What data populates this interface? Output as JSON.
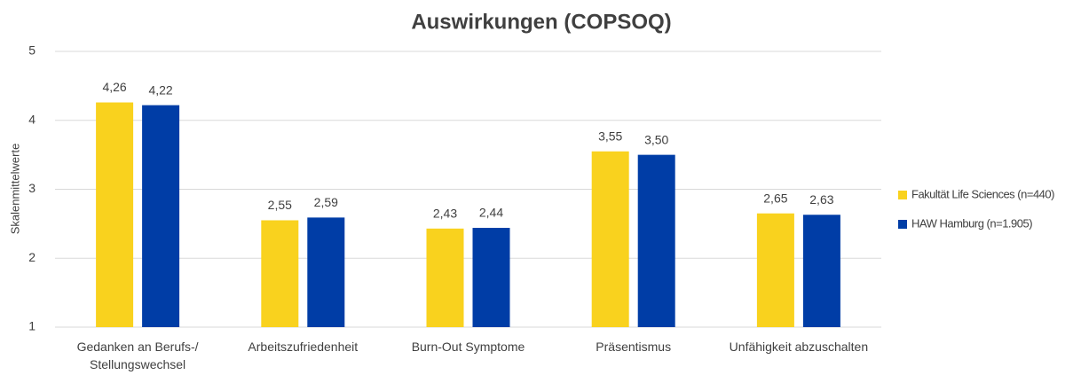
{
  "chart_data": {
    "type": "bar",
    "title": "Auswirkungen (COPSOQ)",
    "y_label": "Skalenmittelwerte",
    "categories": [
      "Gedanken an Berufs-/ Stellungswechsel",
      "Arbeitszufriedenheit",
      "Burn-Out Symptome",
      "Präsentismus",
      "Unfähigkeit abzuschalten"
    ],
    "series": [
      {
        "name": "Fakultät Life Sciences (n=440)",
        "color": "#f9d21e",
        "values": [
          4.26,
          2.55,
          2.43,
          3.55,
          2.65
        ],
        "value_labels": [
          "4,26",
          "2,55",
          "2,43",
          "3,55",
          "2,65"
        ]
      },
      {
        "name": "HAW Hamburg (n=1.905)",
        "color": "#003da6",
        "values": [
          4.22,
          2.59,
          2.44,
          3.5,
          2.63
        ],
        "value_labels": [
          "4,22",
          "2,59",
          "2,44",
          "3,50",
          "2,63"
        ]
      }
    ],
    "ylim": [
      1,
      5
    ],
    "yticks": [
      1,
      2,
      3,
      4,
      5
    ],
    "grid": true,
    "legend": "right"
  }
}
